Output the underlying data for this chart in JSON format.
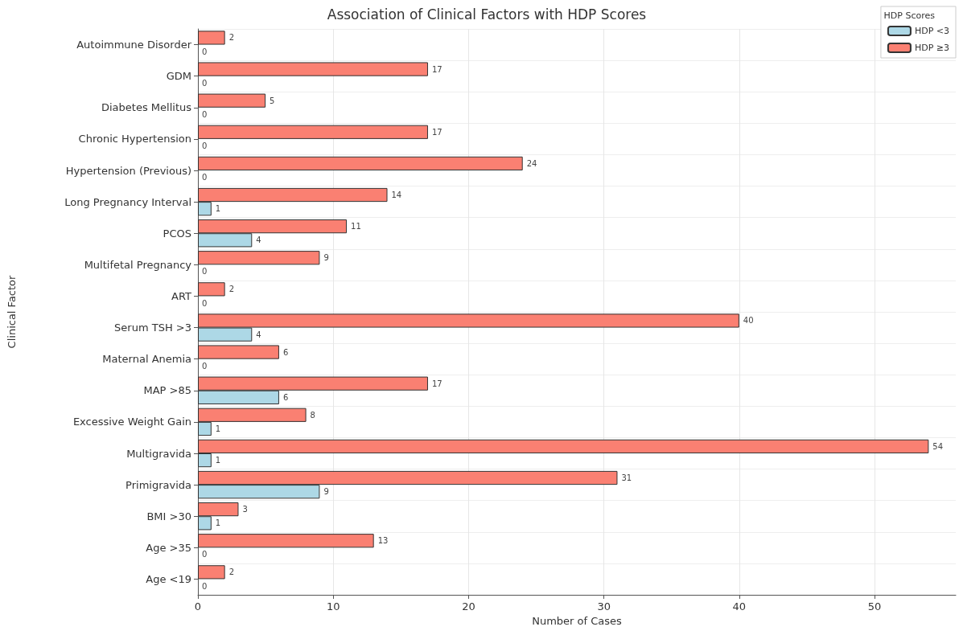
{
  "chart_data": {
    "type": "bar",
    "orientation": "horizontal",
    "title": "Association of Clinical Factors with HDP Scores",
    "xlabel": "Number of Cases",
    "ylabel": "Clinical Factor",
    "legend_title": "HDP Scores",
    "legend": "top right",
    "grid": true,
    "data_labels": true,
    "categories": [
      "Autoimmune Disorder",
      "GDM",
      "Diabetes Mellitus",
      "Chronic Hypertension",
      "Hypertension (Previous)",
      "Long Pregnancy Interval",
      "PCOS",
      "Multifetal Pregnancy",
      "ART",
      "Serum TSH >3",
      "Maternal Anemia",
      "MAP >85",
      "Excessive Weight Gain",
      "Multigravida",
      "Primigravida",
      "BMI >30",
      "Age >35",
      "Age <19"
    ],
    "series": [
      {
        "name": "HDP <3",
        "color": "#add8e6",
        "values": [
          0,
          0,
          0,
          0,
          0,
          1,
          4,
          0,
          0,
          4,
          0,
          6,
          1,
          1,
          9,
          1,
          0,
          0
        ]
      },
      {
        "name": "HDP ≥3",
        "color": "#fa8072",
        "values": [
          2,
          17,
          5,
          17,
          24,
          14,
          11,
          9,
          2,
          40,
          6,
          17,
          8,
          54,
          31,
          3,
          13,
          2
        ]
      }
    ],
    "xlim": [
      0,
      56
    ],
    "xticks": [
      0,
      10,
      20,
      30,
      40,
      50
    ]
  }
}
